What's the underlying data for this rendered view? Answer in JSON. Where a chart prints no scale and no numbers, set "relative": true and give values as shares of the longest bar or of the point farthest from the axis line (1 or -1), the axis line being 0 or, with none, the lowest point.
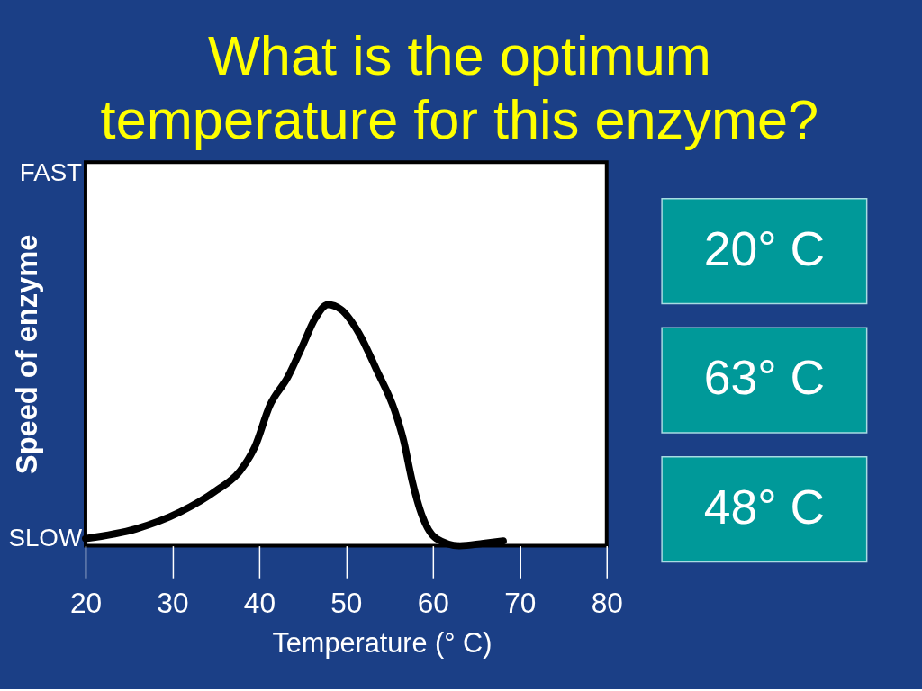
{
  "chart_data": [
    {
      "type": "line",
      "title": "What is the optimum temperature for this enzyme?",
      "xlabel": "Temperature (° C)",
      "ylabel": "Speed of enzyme",
      "annotations": [
        "FAST",
        "SLOW"
      ],
      "relative": true,
      "x": [
        20,
        25.8,
        30.9,
        35.1,
        37.8,
        39.5,
        41.2,
        43.3,
        45,
        46.4,
        47.9,
        49.4,
        51.5,
        53.5,
        55.6,
        56.6,
        57.6,
        58.7,
        60.4,
        63.1,
        65.8,
        68.1
      ],
      "series": [
        {
          "color": "#000000",
          "values": [
            0.03,
            0.07,
            0.14,
            0.23,
            0.31,
            0.41,
            0.58,
            0.7,
            0.83,
            0.94,
            1,
            0.98,
            0.88,
            0.73,
            0.56,
            0.44,
            0.27,
            0.13,
            0.03,
            0,
            0.01,
            0.02
          ]
        }
      ],
      "xlim": [
        20,
        80
      ],
      "xticks": [
        20,
        30,
        40,
        50,
        60,
        70,
        80
      ],
      "grid": false
    },
    {
      "type": "other",
      "annotations": [
        "20° C",
        "63° C",
        "48° C"
      ],
      "colors": [
        "#009999",
        "#009999",
        "#009999"
      ]
    }
  ]
}
